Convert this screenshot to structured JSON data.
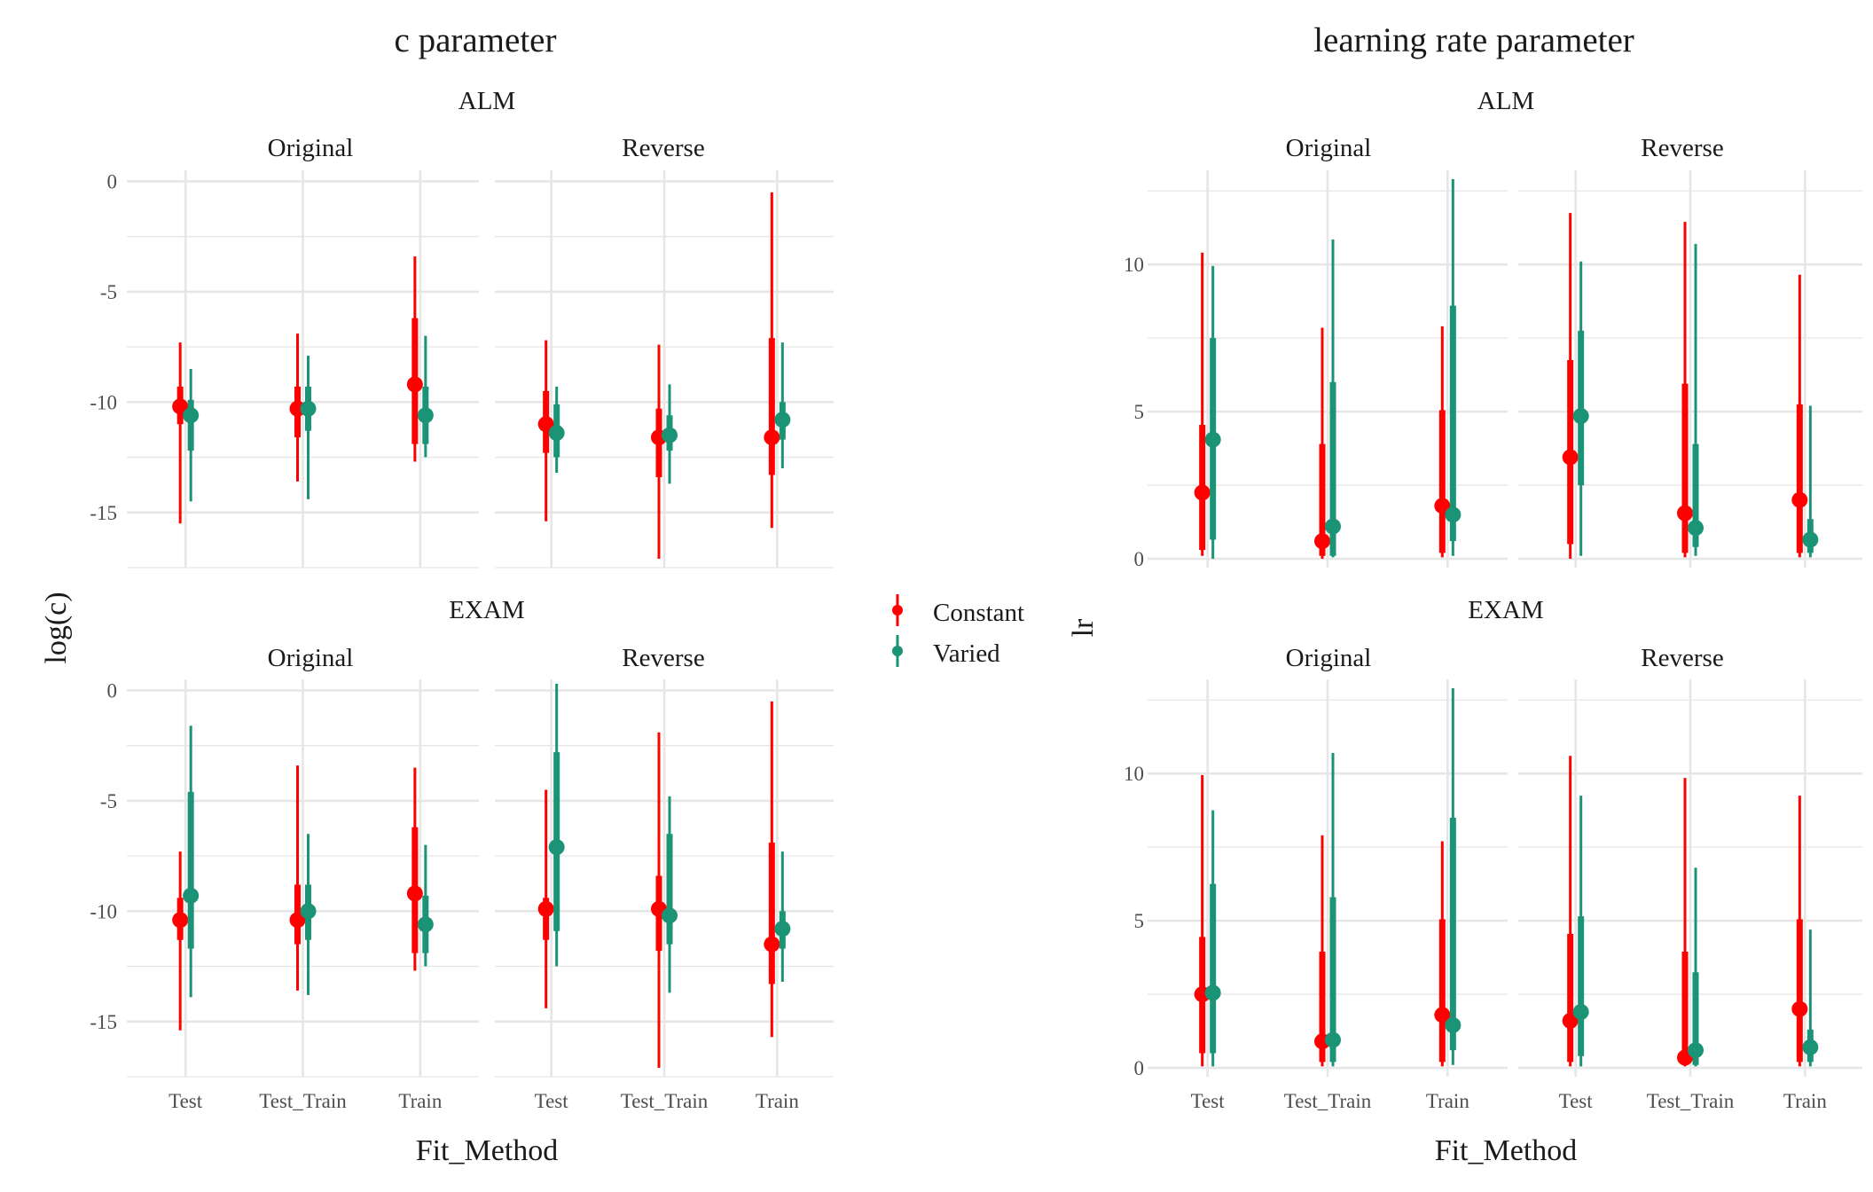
{
  "chart_data": [
    {
      "type": "pointrange",
      "title": "c parameter",
      "xlabel": "Fit_Method",
      "ylabel": "log(c)",
      "ylim": [
        -17.5,
        0.5
      ],
      "yticks": [
        0,
        -5,
        -10,
        -15
      ],
      "categories": [
        "Test",
        "Test_Train",
        "Train"
      ],
      "legend": {
        "position": "right",
        "entries": [
          "Constant",
          "Varied"
        ]
      },
      "colors": {
        "Constant": "#ff0000",
        "Varied": "#1b9377"
      },
      "panels": [
        {
          "model": "ALM",
          "direction": "Original",
          "series": [
            {
              "name": "Constant",
              "points": [
                {
                  "x": "Test",
                  "median": -10.2,
                  "inner": [
                    -11.0,
                    -9.3
                  ],
                  "outer": [
                    -15.5,
                    -7.3
                  ]
                },
                {
                  "x": "Test_Train",
                  "median": -10.3,
                  "inner": [
                    -11.6,
                    -9.3
                  ],
                  "outer": [
                    -13.6,
                    -6.9
                  ]
                },
                {
                  "x": "Train",
                  "median": -9.2,
                  "inner": [
                    -11.9,
                    -6.2
                  ],
                  "outer": [
                    -12.7,
                    -3.4
                  ]
                }
              ]
            },
            {
              "name": "Varied",
              "points": [
                {
                  "x": "Test",
                  "median": -10.6,
                  "inner": [
                    -12.2,
                    -9.9
                  ],
                  "outer": [
                    -14.5,
                    -8.5
                  ]
                },
                {
                  "x": "Test_Train",
                  "median": -10.3,
                  "inner": [
                    -11.3,
                    -9.3
                  ],
                  "outer": [
                    -14.4,
                    -7.9
                  ]
                },
                {
                  "x": "Train",
                  "median": -10.6,
                  "inner": [
                    -11.9,
                    -9.3
                  ],
                  "outer": [
                    -12.5,
                    -7.0
                  ]
                }
              ]
            }
          ]
        },
        {
          "model": "ALM",
          "direction": "Reverse",
          "series": [
            {
              "name": "Constant",
              "points": [
                {
                  "x": "Test",
                  "median": -11.0,
                  "inner": [
                    -12.3,
                    -9.5
                  ],
                  "outer": [
                    -15.4,
                    -7.2
                  ]
                },
                {
                  "x": "Test_Train",
                  "median": -11.6,
                  "inner": [
                    -13.4,
                    -10.3
                  ],
                  "outer": [
                    -17.1,
                    -7.4
                  ]
                },
                {
                  "x": "Train",
                  "median": -11.6,
                  "inner": [
                    -13.3,
                    -7.1
                  ],
                  "outer": [
                    -15.7,
                    -0.5
                  ]
                }
              ]
            },
            {
              "name": "Varied",
              "points": [
                {
                  "x": "Test",
                  "median": -11.4,
                  "inner": [
                    -12.5,
                    -10.1
                  ],
                  "outer": [
                    -13.2,
                    -9.3
                  ]
                },
                {
                  "x": "Test_Train",
                  "median": -11.5,
                  "inner": [
                    -12.2,
                    -10.6
                  ],
                  "outer": [
                    -13.7,
                    -9.2
                  ]
                },
                {
                  "x": "Train",
                  "median": -10.8,
                  "inner": [
                    -11.7,
                    -10.0
                  ],
                  "outer": [
                    -13.0,
                    -7.3
                  ]
                }
              ]
            }
          ]
        },
        {
          "model": "EXAM",
          "direction": "Original",
          "series": [
            {
              "name": "Constant",
              "points": [
                {
                  "x": "Test",
                  "median": -10.4,
                  "inner": [
                    -11.3,
                    -9.4
                  ],
                  "outer": [
                    -15.4,
                    -7.3
                  ]
                },
                {
                  "x": "Test_Train",
                  "median": -10.4,
                  "inner": [
                    -11.5,
                    -8.8
                  ],
                  "outer": [
                    -13.6,
                    -3.4
                  ]
                },
                {
                  "x": "Train",
                  "median": -9.2,
                  "inner": [
                    -11.9,
                    -6.2
                  ],
                  "outer": [
                    -12.7,
                    -3.5
                  ]
                }
              ]
            },
            {
              "name": "Varied",
              "points": [
                {
                  "x": "Test",
                  "median": -9.3,
                  "inner": [
                    -11.7,
                    -4.6
                  ],
                  "outer": [
                    -13.9,
                    -1.6
                  ]
                },
                {
                  "x": "Test_Train",
                  "median": -10.0,
                  "inner": [
                    -11.3,
                    -8.8
                  ],
                  "outer": [
                    -13.8,
                    -6.5
                  ]
                },
                {
                  "x": "Train",
                  "median": -10.6,
                  "inner": [
                    -11.9,
                    -9.3
                  ],
                  "outer": [
                    -12.5,
                    -7.0
                  ]
                }
              ]
            }
          ]
        },
        {
          "model": "EXAM",
          "direction": "Reverse",
          "series": [
            {
              "name": "Constant",
              "points": [
                {
                  "x": "Test",
                  "median": -9.9,
                  "inner": [
                    -11.3,
                    -9.4
                  ],
                  "outer": [
                    -14.4,
                    -4.5
                  ]
                },
                {
                  "x": "Test_Train",
                  "median": -9.9,
                  "inner": [
                    -11.8,
                    -8.4
                  ],
                  "outer": [
                    -17.1,
                    -1.9
                  ]
                },
                {
                  "x": "Train",
                  "median": -11.5,
                  "inner": [
                    -13.3,
                    -6.9
                  ],
                  "outer": [
                    -15.7,
                    -0.5
                  ]
                }
              ]
            },
            {
              "name": "Varied",
              "points": [
                {
                  "x": "Test",
                  "median": -7.1,
                  "inner": [
                    -10.9,
                    -2.8
                  ],
                  "outer": [
                    -12.5,
                    0.3
                  ]
                },
                {
                  "x": "Test_Train",
                  "median": -10.2,
                  "inner": [
                    -11.5,
                    -6.5
                  ],
                  "outer": [
                    -13.7,
                    -4.8
                  ]
                },
                {
                  "x": "Train",
                  "median": -10.8,
                  "inner": [
                    -11.7,
                    -10.0
                  ],
                  "outer": [
                    -13.2,
                    -7.3
                  ]
                }
              ]
            }
          ]
        }
      ]
    },
    {
      "type": "pointrange",
      "title": "learning rate parameter",
      "xlabel": "Fit_Method",
      "ylabel": "lr",
      "ylim": [
        -0.3,
        13.2
      ],
      "yticks": [
        0,
        5,
        10
      ],
      "categories": [
        "Test",
        "Test_Train",
        "Train"
      ],
      "legend": {
        "position": "right",
        "entries": [
          "Constant",
          "Varied"
        ]
      },
      "colors": {
        "Constant": "#ff0000",
        "Varied": "#1b9377"
      },
      "panels": [
        {
          "model": "ALM",
          "direction": "Original",
          "series": [
            {
              "name": "Constant",
              "points": [
                {
                  "x": "Test",
                  "median": 2.25,
                  "inner": [
                    0.3,
                    4.55
                  ],
                  "outer": [
                    0.1,
                    10.4
                  ]
                },
                {
                  "x": "Test_Train",
                  "median": 0.6,
                  "inner": [
                    0.1,
                    3.9
                  ],
                  "outer": [
                    0.0,
                    7.85
                  ]
                },
                {
                  "x": "Train",
                  "median": 1.8,
                  "inner": [
                    0.2,
                    5.05
                  ],
                  "outer": [
                    0.05,
                    7.9
                  ]
                }
              ]
            },
            {
              "name": "Varied",
              "points": [
                {
                  "x": "Test",
                  "median": 4.05,
                  "inner": [
                    0.65,
                    7.5
                  ],
                  "outer": [
                    0.0,
                    9.95
                  ]
                },
                {
                  "x": "Test_Train",
                  "median": 1.1,
                  "inner": [
                    0.1,
                    6.0
                  ],
                  "outer": [
                    0.05,
                    10.85
                  ]
                },
                {
                  "x": "Train",
                  "median": 1.5,
                  "inner": [
                    0.6,
                    8.6
                  ],
                  "outer": [
                    0.1,
                    12.9
                  ]
                }
              ]
            }
          ]
        },
        {
          "model": "ALM",
          "direction": "Reverse",
          "series": [
            {
              "name": "Constant",
              "points": [
                {
                  "x": "Test",
                  "median": 3.45,
                  "inner": [
                    0.5,
                    6.75
                  ],
                  "outer": [
                    0.0,
                    11.75
                  ]
                },
                {
                  "x": "Test_Train",
                  "median": 1.55,
                  "inner": [
                    0.2,
                    5.95
                  ],
                  "outer": [
                    0.05,
                    11.45
                  ]
                },
                {
                  "x": "Train",
                  "median": 2.0,
                  "inner": [
                    0.2,
                    5.25
                  ],
                  "outer": [
                    0.05,
                    9.65
                  ]
                }
              ]
            },
            {
              "name": "Varied",
              "points": [
                {
                  "x": "Test",
                  "median": 4.85,
                  "inner": [
                    2.5,
                    7.75
                  ],
                  "outer": [
                    0.1,
                    10.1
                  ]
                },
                {
                  "x": "Test_Train",
                  "median": 1.05,
                  "inner": [
                    0.4,
                    3.9
                  ],
                  "outer": [
                    0.1,
                    10.7
                  ]
                },
                {
                  "x": "Train",
                  "median": 0.65,
                  "inner": [
                    0.2,
                    1.35
                  ],
                  "outer": [
                    0.05,
                    5.2
                  ]
                }
              ]
            }
          ]
        },
        {
          "model": "EXAM",
          "direction": "Original",
          "series": [
            {
              "name": "Constant",
              "points": [
                {
                  "x": "Test",
                  "median": 2.5,
                  "inner": [
                    0.5,
                    4.45
                  ],
                  "outer": [
                    0.05,
                    9.95
                  ]
                },
                {
                  "x": "Test_Train",
                  "median": 0.9,
                  "inner": [
                    0.2,
                    3.95
                  ],
                  "outer": [
                    0.05,
                    7.9
                  ]
                },
                {
                  "x": "Train",
                  "median": 1.8,
                  "inner": [
                    0.2,
                    5.05
                  ],
                  "outer": [
                    0.05,
                    7.7
                  ]
                }
              ]
            },
            {
              "name": "Varied",
              "points": [
                {
                  "x": "Test",
                  "median": 2.55,
                  "inner": [
                    0.5,
                    6.25
                  ],
                  "outer": [
                    0.05,
                    8.75
                  ]
                },
                {
                  "x": "Test_Train",
                  "median": 0.95,
                  "inner": [
                    0.2,
                    5.8
                  ],
                  "outer": [
                    0.05,
                    10.7
                  ]
                },
                {
                  "x": "Train",
                  "median": 1.45,
                  "inner": [
                    0.6,
                    8.5
                  ],
                  "outer": [
                    0.1,
                    12.9
                  ]
                }
              ]
            }
          ]
        },
        {
          "model": "EXAM",
          "direction": "Reverse",
          "series": [
            {
              "name": "Constant",
              "points": [
                {
                  "x": "Test",
                  "median": 1.6,
                  "inner": [
                    0.2,
                    4.55
                  ],
                  "outer": [
                    0.05,
                    10.6
                  ]
                },
                {
                  "x": "Test_Train",
                  "median": 0.35,
                  "inner": [
                    0.1,
                    3.95
                  ],
                  "outer": [
                    0.05,
                    9.85
                  ]
                },
                {
                  "x": "Train",
                  "median": 2.0,
                  "inner": [
                    0.2,
                    5.05
                  ],
                  "outer": [
                    0.05,
                    9.25
                  ]
                }
              ]
            },
            {
              "name": "Varied",
              "points": [
                {
                  "x": "Test",
                  "median": 1.9,
                  "inner": [
                    0.4,
                    5.15
                  ],
                  "outer": [
                    0.05,
                    9.25
                  ]
                },
                {
                  "x": "Test_Train",
                  "median": 0.6,
                  "inner": [
                    0.1,
                    3.25
                  ],
                  "outer": [
                    0.05,
                    6.8
                  ]
                },
                {
                  "x": "Train",
                  "median": 0.7,
                  "inner": [
                    0.2,
                    1.3
                  ],
                  "outer": [
                    0.05,
                    4.7
                  ]
                }
              ]
            }
          ]
        }
      ]
    }
  ]
}
